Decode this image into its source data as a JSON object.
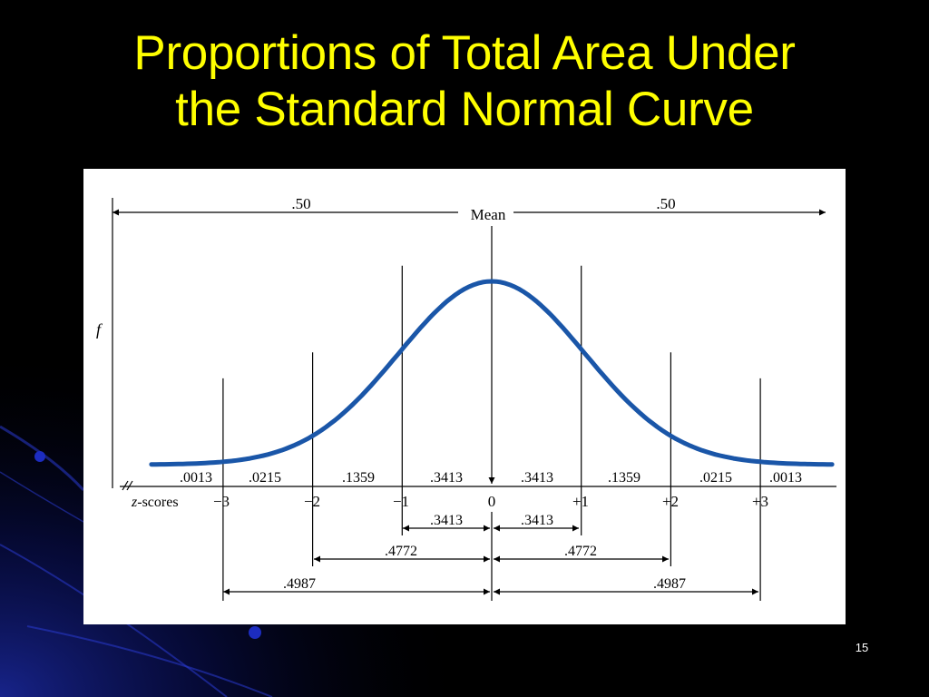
{
  "slide": {
    "title_line1": "Proportions of Total Area Under",
    "title_line2": "the Standard Normal Curve",
    "number": "15"
  },
  "colors": {
    "background": "#000000",
    "title": "#ffff00",
    "curve": "#1a56a8",
    "panel": "#ffffff",
    "accent_glow": "#1f2fb8"
  },
  "figure": {
    "y_axis_label": "f",
    "mean_label": "Mean",
    "half_left": ".50",
    "half_right": ".50",
    "z_axis_label": "z-scores",
    "z_ticks": [
      "−3",
      "−2",
      "−1",
      "0",
      "+1",
      "+2",
      "+3"
    ],
    "area_labels": [
      ".0013",
      ".0215",
      ".1359",
      ".3413",
      ".3413",
      ".1359",
      ".0215",
      ".0013"
    ],
    "cumulative": {
      "left": [
        ".3413",
        ".4772",
        ".4987"
      ],
      "right": [
        ".3413",
        ".4772",
        ".4987"
      ]
    }
  }
}
